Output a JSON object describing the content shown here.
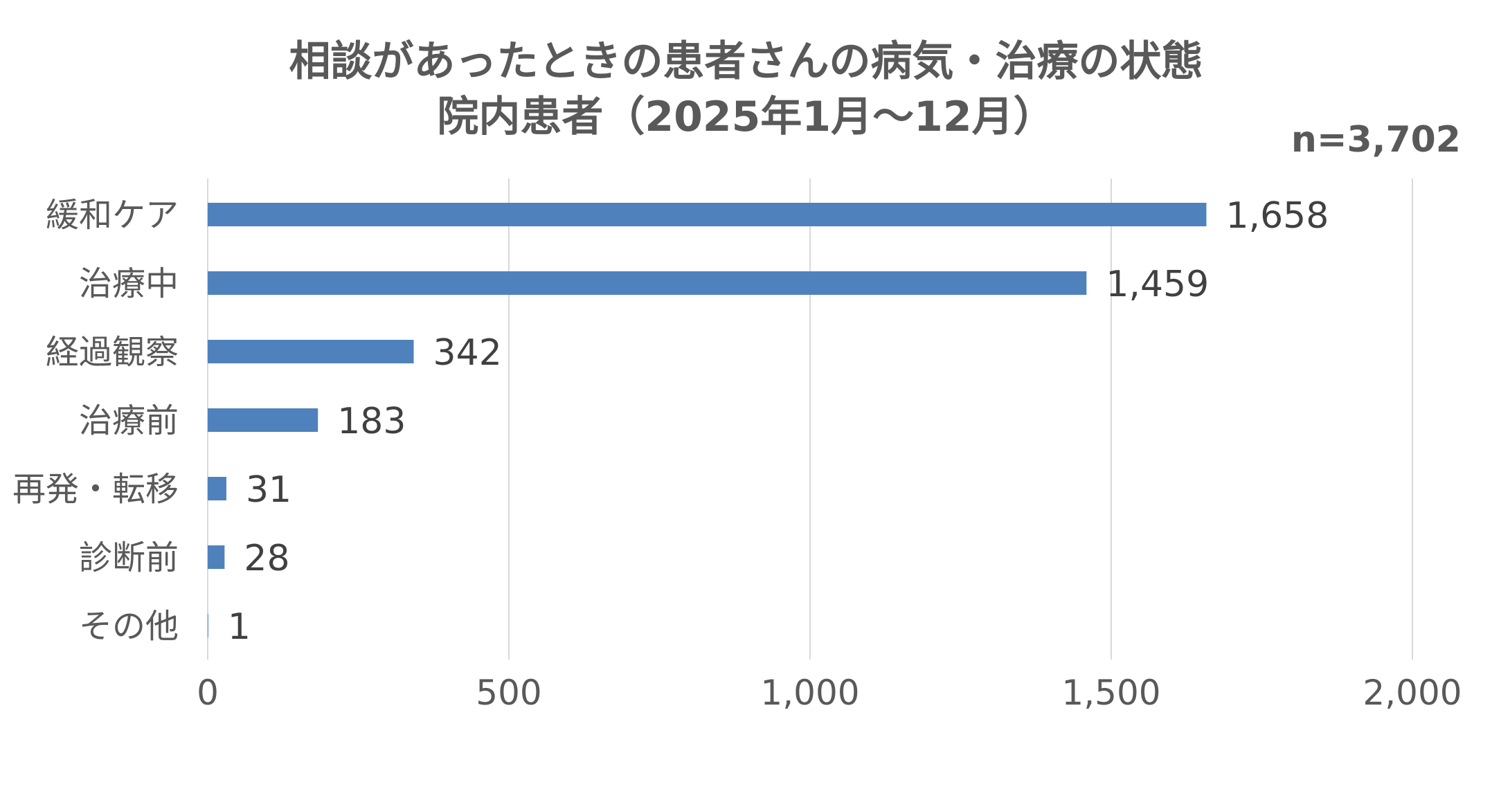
{
  "chart_data": {
    "type": "bar",
    "orientation": "horizontal",
    "title": "相談があったときの患者さんの病気・治療の状態",
    "subtitle": "院内患者（2025年1月～12月）",
    "annotation": "n=3,702",
    "categories": [
      "緩和ケア",
      "治療中",
      "経過観察",
      "治療前",
      "再発・転移",
      "診断前",
      "その他"
    ],
    "values": [
      1658,
      1459,
      342,
      183,
      31,
      28,
      1
    ],
    "value_labels": [
      "1,658",
      "1,459",
      "342",
      "183",
      "31",
      "28",
      "1"
    ],
    "xlim": [
      0,
      2000
    ],
    "x_ticks": [
      0,
      500,
      1000,
      1500,
      2000
    ],
    "x_tick_labels": [
      "0",
      "500",
      "1,000",
      "1,500",
      "2,000"
    ],
    "xlabel": "",
    "ylabel": "",
    "grid": "vertical",
    "legend": "none",
    "bar_color": "#4f81bd",
    "grid_color": "#d9d9d9",
    "text_color": "#595959",
    "label_color": "#404040"
  }
}
